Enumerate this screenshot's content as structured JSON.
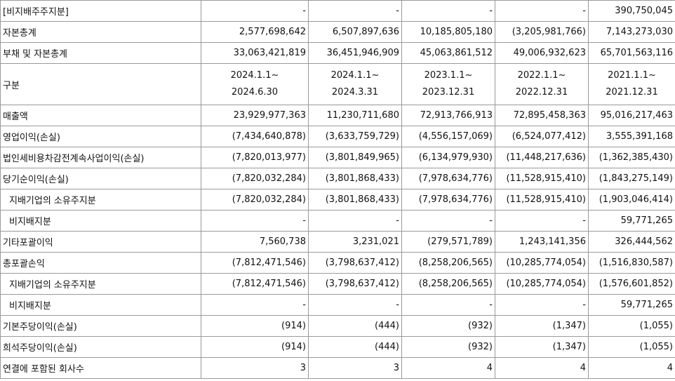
{
  "columns": [
    "2024.1.1~|2024.6.30",
    "2024.1.1~|2024.3.31",
    "2023.1.1~|2023.12.31",
    "2022.1.1~|2022.12.31",
    "2021.1.1~|2021.12.31"
  ],
  "rows": [
    {
      "label": "[비지배주주지분]",
      "indent": false,
      "values": [
        "-",
        "-",
        "-",
        "-",
        "390,750,045"
      ]
    },
    {
      "label": "자본총계",
      "indent": false,
      "values": [
        "2,577,698,642",
        "6,507,897,636",
        "10,185,805,180",
        "(3,205,981,766)",
        "7,143,273,030"
      ]
    },
    {
      "label": "부채 및 자본총계",
      "indent": false,
      "values": [
        "33,063,421,819",
        "36,451,946,909",
        "45,063,861,512",
        "49,006,932,623",
        "65,701,563,116"
      ]
    },
    {
      "label": "구분",
      "indent": false,
      "header": true,
      "periods": [
        {
          "start": "2024.1.1~",
          "end": "2024.6.30"
        },
        {
          "start": "2024.1.1~",
          "end": "2024.3.31"
        },
        {
          "start": "2023.1.1~",
          "end": "2023.12.31"
        },
        {
          "start": "2022.1.1~",
          "end": "2022.12.31"
        },
        {
          "start": "2021.1.1~",
          "end": "2021.12.31"
        }
      ]
    },
    {
      "label": "매출액",
      "indent": false,
      "values": [
        "23,929,977,363",
        "11,230,711,680",
        "72,913,766,913",
        "72,895,458,363",
        "95,016,217,463"
      ]
    },
    {
      "label": "영업이익(손실)",
      "indent": false,
      "values": [
        "(7,434,640,878)",
        "(3,633,759,729)",
        "(4,556,157,069)",
        "(6,524,077,412)",
        "3,555,391,168"
      ]
    },
    {
      "label": "법인세비용차감전계속사업이익(손실)",
      "indent": false,
      "values": [
        "(7,820,013,977)",
        "(3,801,849,965)",
        "(6,134,979,930)",
        "(11,448,217,636)",
        "(1,362,385,430)"
      ]
    },
    {
      "label": "당기순이익(손실)",
      "indent": false,
      "values": [
        "(7,820,032,284)",
        "(3,801,868,433)",
        "(7,978,634,776)",
        "(11,528,915,410)",
        "(1,843,275,149)"
      ]
    },
    {
      "label": "지배기업의 소유주지분",
      "indent": true,
      "values": [
        "(7,820,032,284)",
        "(3,801,868,433)",
        "(7,978,634,776)",
        "(11,528,915,410)",
        "(1,903,046,414)"
      ]
    },
    {
      "label": "비지배지분",
      "indent": true,
      "values": [
        "-",
        "-",
        "-",
        "-",
        "59,771,265"
      ]
    },
    {
      "label": "기타포괄이익",
      "indent": false,
      "values": [
        "7,560,738",
        "3,231,021",
        "(279,571,789)",
        "1,243,141,356",
        "326,444,562"
      ]
    },
    {
      "label": "총포괄손익",
      "indent": false,
      "values": [
        "(7,812,471,546)",
        "(3,798,637,412)",
        "(8,258,206,565)",
        "(10,285,774,054)",
        "(1,516,830,587)"
      ]
    },
    {
      "label": "지배기업의 소유주지분",
      "indent": true,
      "values": [
        "(7,812,471,546)",
        "(3,798,637,412)",
        "(8,258,206,565)",
        "(10,285,774,054)",
        "(1,576,601,852)"
      ]
    },
    {
      "label": "비지배지분",
      "indent": true,
      "values": [
        "-",
        "-",
        "-",
        "-",
        "59,771,265"
      ]
    },
    {
      "label": "기본주당이익(손실)",
      "indent": false,
      "values": [
        "(914)",
        "(444)",
        "(932)",
        "(1,347)",
        "(1,055)"
      ]
    },
    {
      "label": "희석주당이익(손실)",
      "indent": false,
      "values": [
        "(914)",
        "(444)",
        "(932)",
        "(1,347)",
        "(1,055)"
      ]
    },
    {
      "label": "연결에 포함된 회사수",
      "indent": false,
      "values": [
        "3",
        "3",
        "4",
        "4",
        "4"
      ]
    }
  ]
}
